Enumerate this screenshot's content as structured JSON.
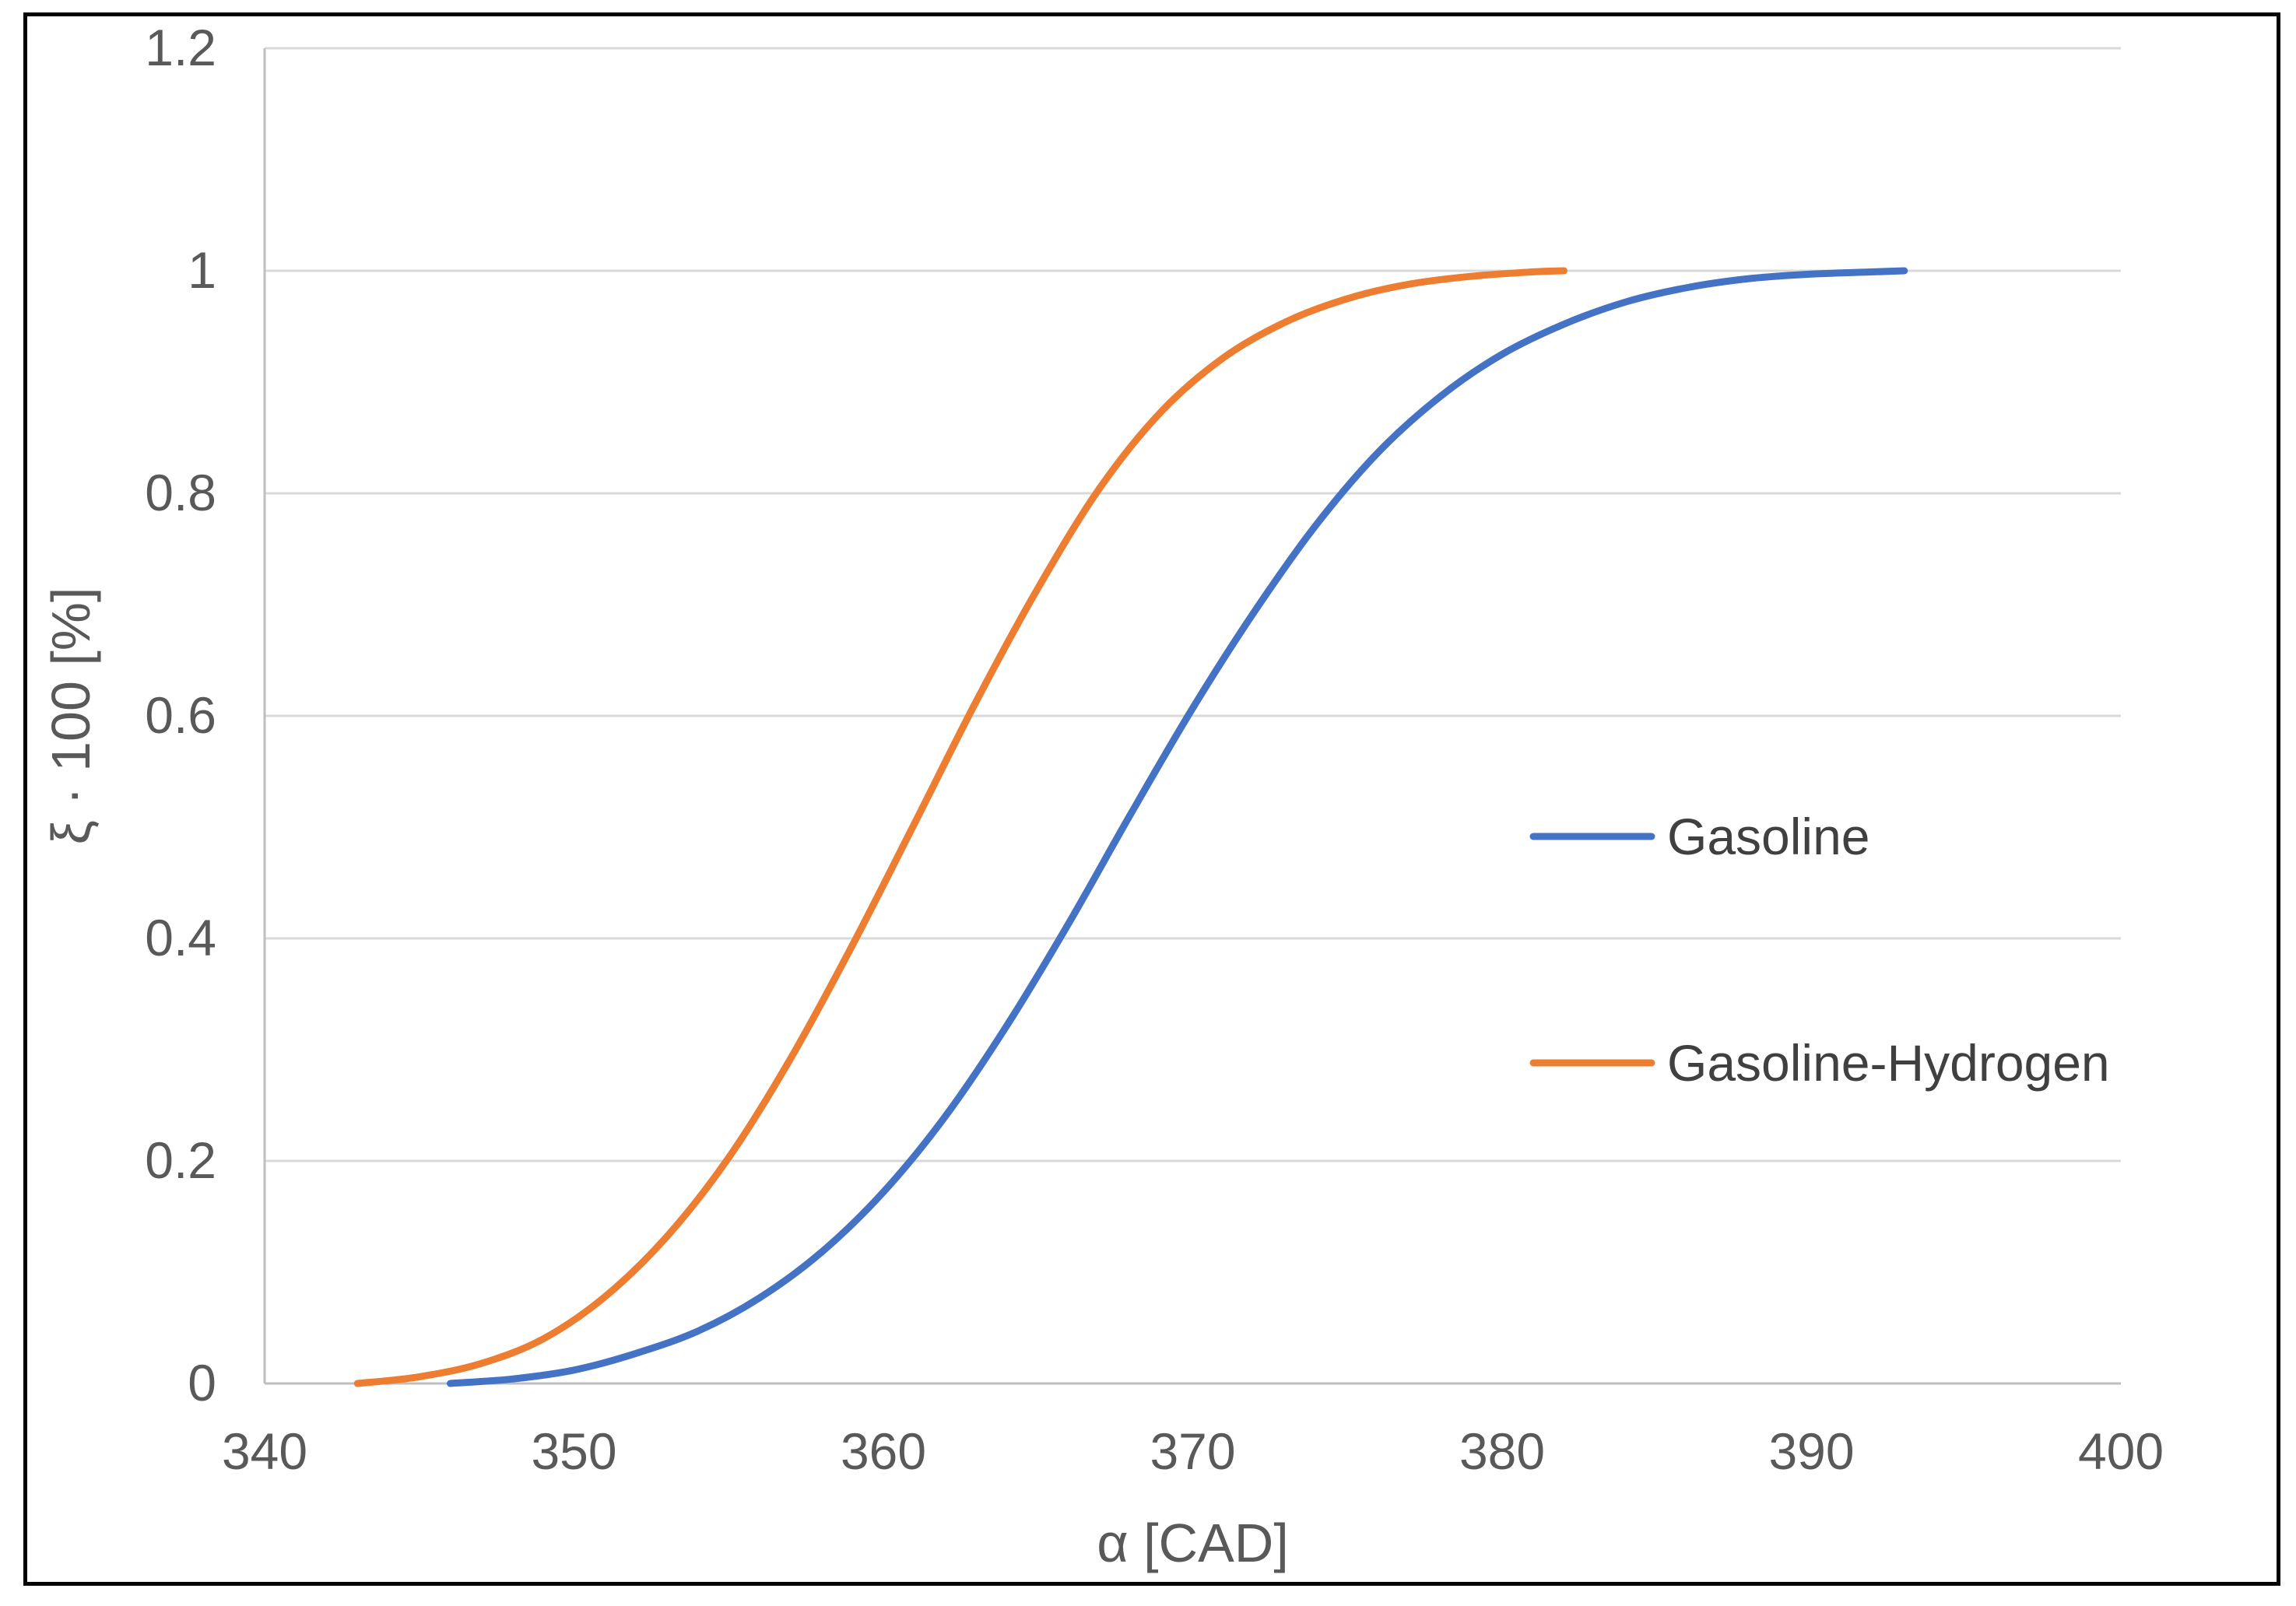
{
  "chart_data": {
    "type": "line",
    "title": "",
    "xlabel": "α [CAD]",
    "ylabel": "ξ · 100 [%]",
    "xlim": [
      340,
      400
    ],
    "ylim": [
      0,
      1.2
    ],
    "xticks": [
      "340",
      "350",
      "360",
      "370",
      "380",
      "390",
      "400"
    ],
    "yticks": [
      "0",
      "0.2",
      "0.4",
      "0.6",
      "0.8",
      "1",
      "1.2"
    ],
    "grid": "horizontal",
    "legend_position": "right",
    "series": [
      {
        "name": "Gasoline",
        "color": "#4472C4",
        "x": [
          346,
          348,
          350,
          352,
          354,
          356,
          358,
          360,
          362,
          364,
          366,
          368,
          370,
          372,
          374,
          376,
          378,
          380,
          382,
          384,
          386,
          388,
          390,
          392,
          393
        ],
        "y": [
          0.0,
          0.004,
          0.012,
          0.027,
          0.047,
          0.077,
          0.118,
          0.172,
          0.24,
          0.322,
          0.414,
          0.512,
          0.607,
          0.694,
          0.772,
          0.837,
          0.887,
          0.925,
          0.952,
          0.972,
          0.985,
          0.993,
          0.997,
          0.999,
          1.0
        ]
      },
      {
        "name": "Gasoline-Hydrogen",
        "color": "#ED7D31",
        "x": [
          343,
          345,
          347,
          349,
          351,
          353,
          355,
          357,
          359,
          361,
          363,
          365,
          367,
          369,
          371,
          373,
          375,
          377,
          379,
          381,
          382
        ],
        "y": [
          0.0,
          0.006,
          0.018,
          0.04,
          0.078,
          0.132,
          0.203,
          0.292,
          0.394,
          0.503,
          0.613,
          0.715,
          0.805,
          0.874,
          0.922,
          0.954,
          0.975,
          0.988,
          0.995,
          0.999,
          1.0
        ]
      }
    ]
  }
}
